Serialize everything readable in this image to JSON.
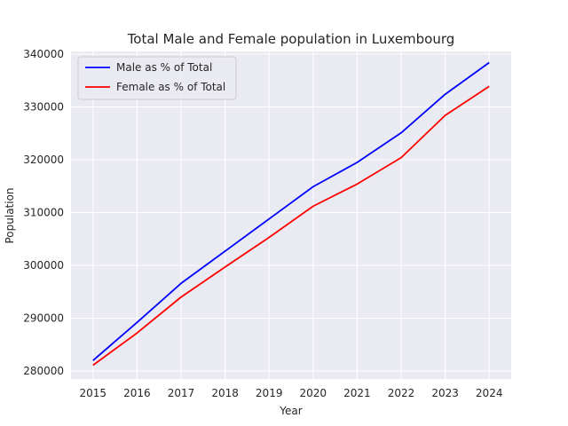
{
  "chart_data": {
    "type": "line",
    "title": "Total Male and Female population in Luxembourg",
    "xlabel": "Year",
    "ylabel": "Population",
    "x": [
      2015,
      2016,
      2017,
      2018,
      2019,
      2020,
      2021,
      2022,
      2023,
      2024
    ],
    "xlim": [
      2014.5,
      2024.5
    ],
    "ylim": [
      278500,
      340500
    ],
    "y_ticks": [
      280000,
      290000,
      300000,
      310000,
      320000,
      330000,
      340000
    ],
    "x_ticks": [
      2015,
      2016,
      2017,
      2018,
      2019,
      2020,
      2021,
      2022,
      2023,
      2024
    ],
    "grid": true,
    "legend_position": "upper-left",
    "series": [
      {
        "name": "Male as % of Total",
        "color": "#0000ff",
        "values": [
          282000,
          289200,
          296600,
          302700,
          308800,
          314900,
          319500,
          325100,
          332400,
          338400
        ]
      },
      {
        "name": "Female as % of Total",
        "color": "#ff0000",
        "values": [
          281100,
          287200,
          294000,
          299700,
          305300,
          311200,
          315400,
          320400,
          328400,
          333900
        ]
      }
    ],
    "background_color": "#eaeaf2",
    "grid_color": "#ffffff"
  }
}
